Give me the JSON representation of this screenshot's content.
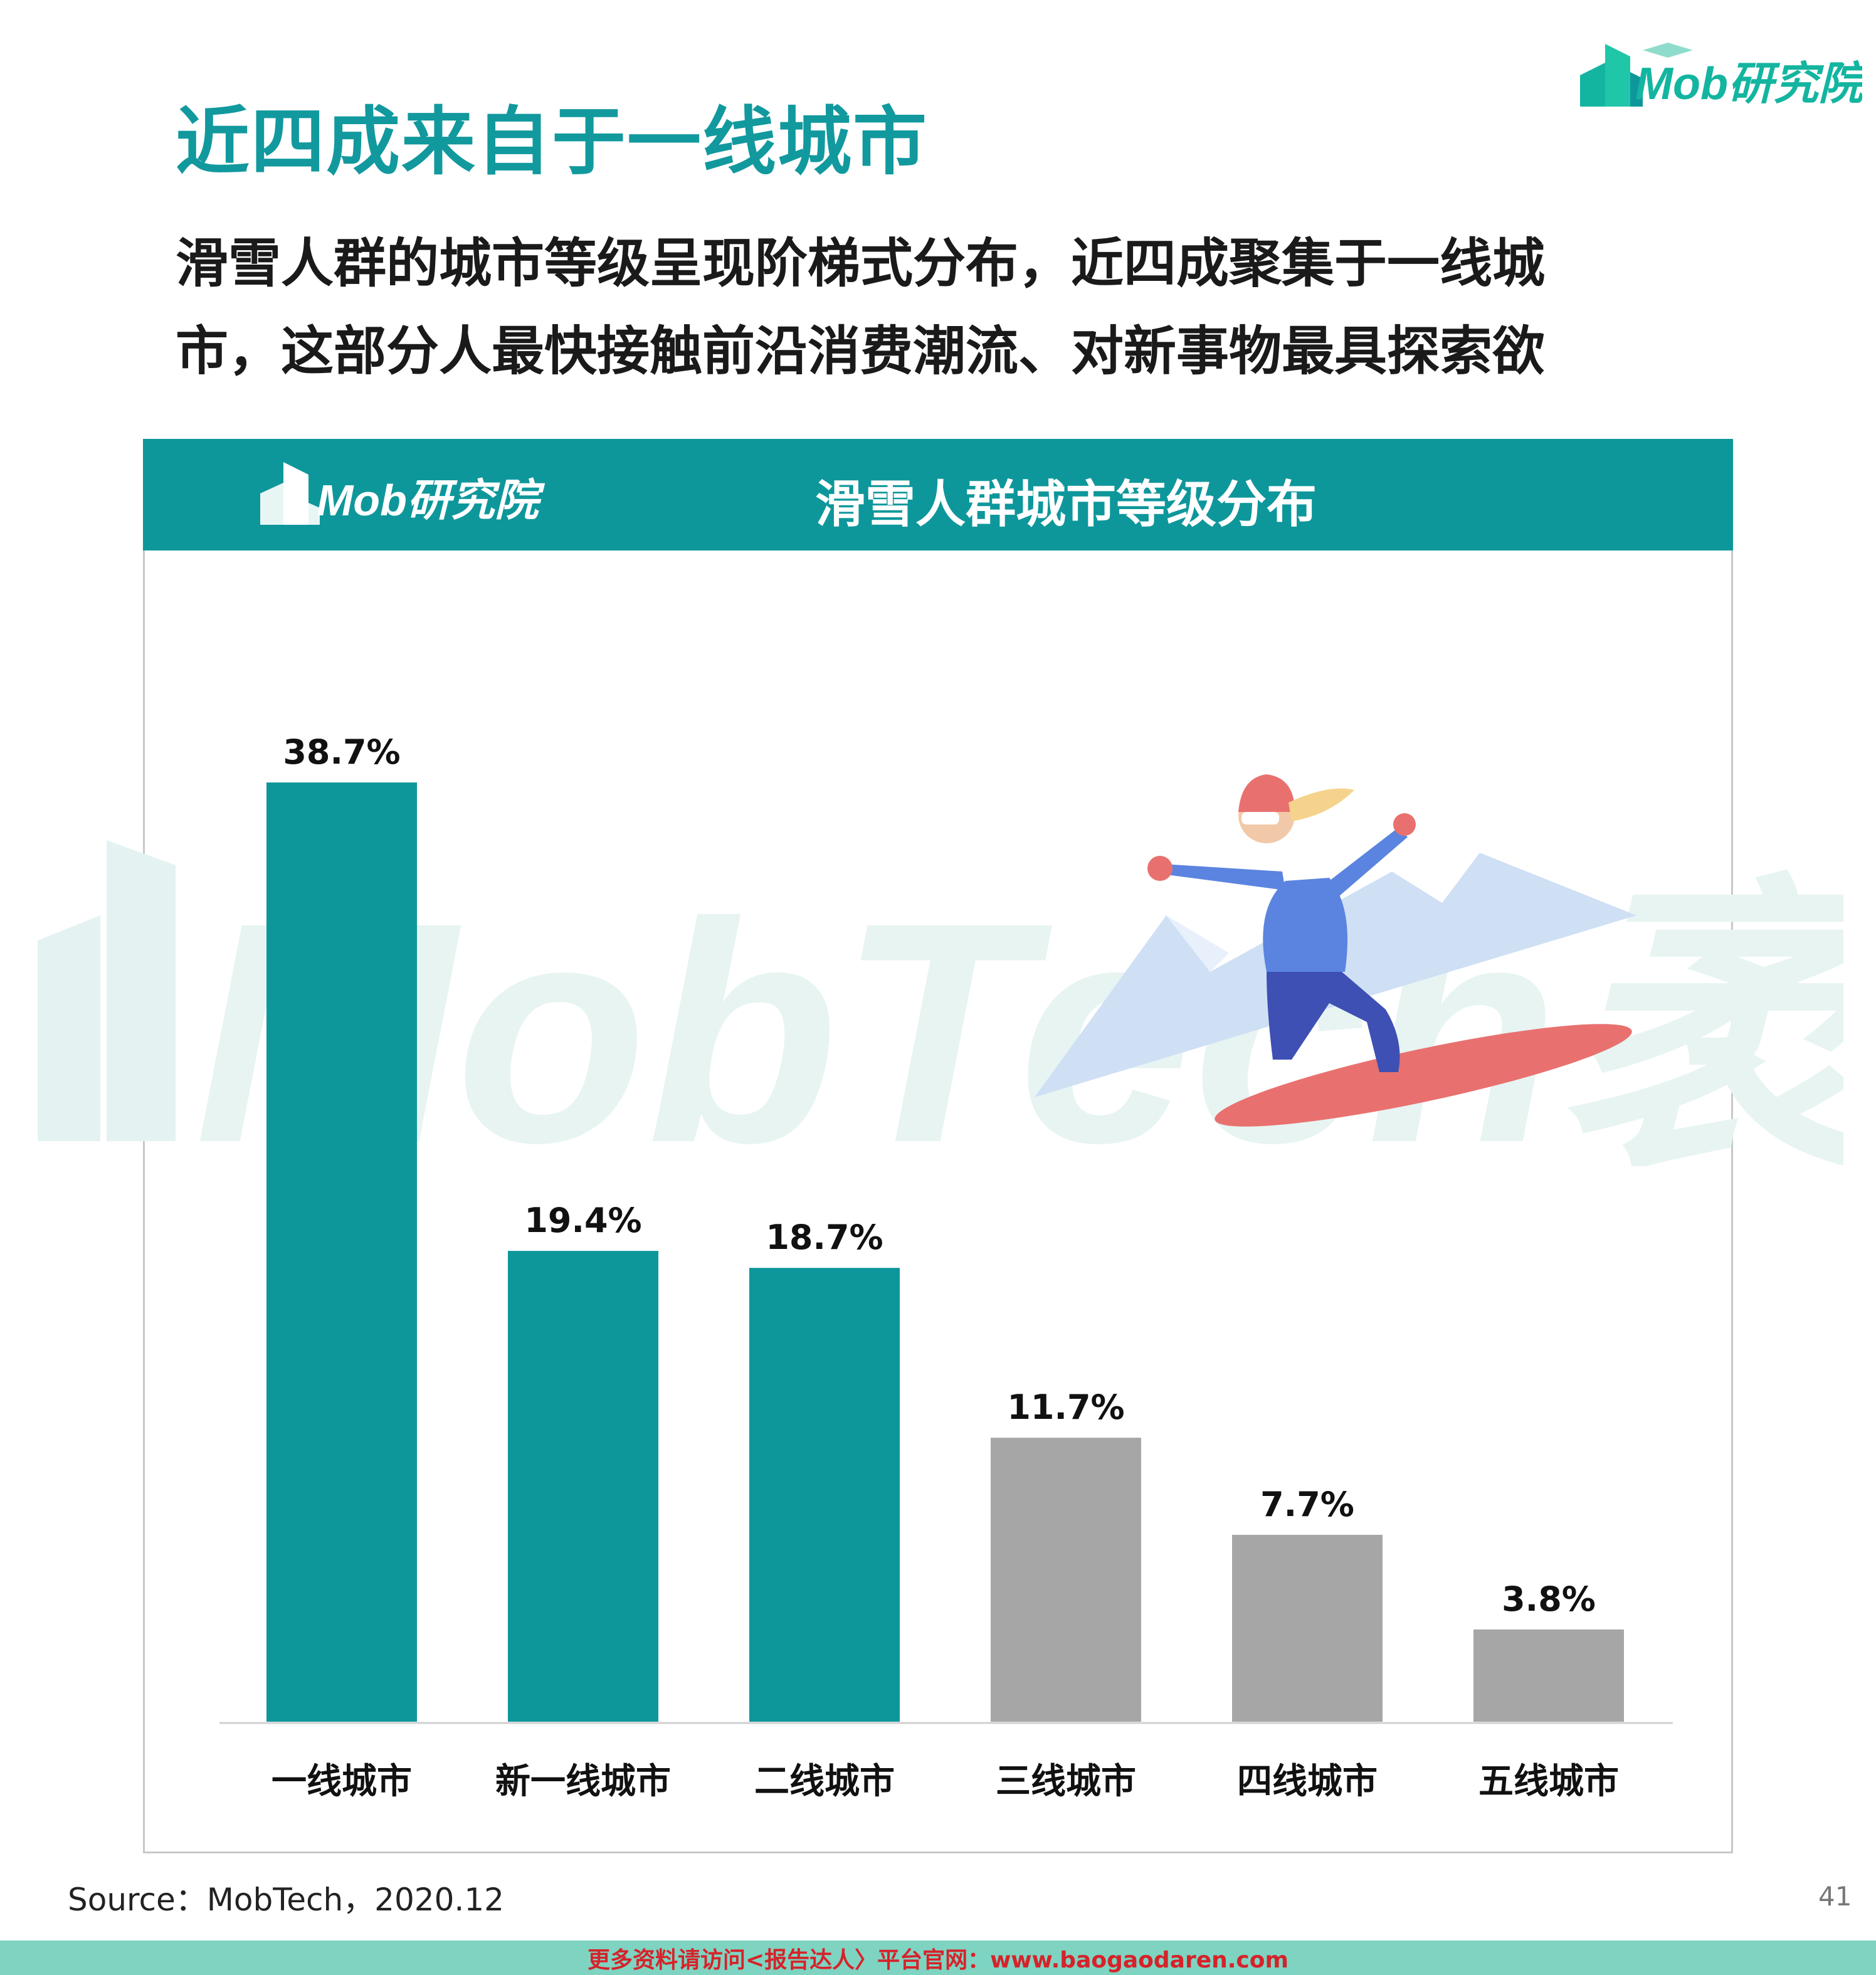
{
  "page": {
    "title": "近四成来自于一线城市",
    "subtitle": "滑雪人群的城市等级呈现阶梯式分布，近四成聚集于一线城市，这部分人最快接触前沿消费潮流、对新事物最具探索欲",
    "logo_text": "Mob研究院",
    "source": "Source：MobTech，2020.12",
    "page_number": "41",
    "footer": "更多资料请访问<报告达人〉平台官网：www.baogaodaren.com",
    "watermark": "MobTech袤博"
  },
  "chart_data": {
    "type": "bar",
    "title": "滑雪人群城市等级分布",
    "categories": [
      "一线城市",
      "新一线城市",
      "二线城市",
      "三线城市",
      "四线城市",
      "五线城市"
    ],
    "values": [
      38.7,
      19.4,
      18.7,
      11.7,
      7.7,
      3.8
    ],
    "labels": [
      "38.7%",
      "19.4%",
      "18.7%",
      "11.7%",
      "7.7%",
      "3.8%"
    ],
    "colors": [
      "#0e979b",
      "#0e979b",
      "#0e979b",
      "#a6a6a6",
      "#a6a6a6",
      "#a6a6a6"
    ],
    "ylim": [
      0,
      38.7
    ],
    "grid": false,
    "legend": "none"
  }
}
